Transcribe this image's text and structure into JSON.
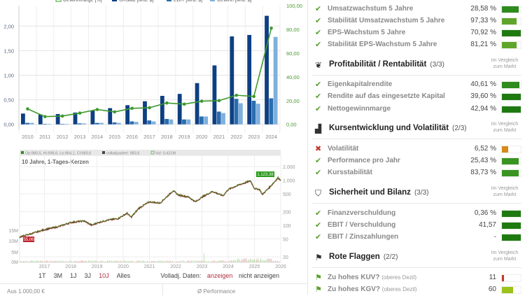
{
  "fundamentals_chart": {
    "legend": [
      "Gewinnmarge [%]",
      "Umsatz [Mrd. $]",
      "EBIT [Mrd. $]",
      "Gewinn [Mrd. $]"
    ],
    "colors": {
      "umsatz": "#0d3f82",
      "ebit": "#2a6db0",
      "gewinn": "#7fb0dc",
      "marge": "#3e9a2e"
    }
  },
  "chart_data": [
    {
      "type": "bar",
      "title": "",
      "categories": [
        "2010",
        "2011",
        "2012",
        "2013",
        "2014",
        "2015",
        "2016",
        "2017",
        "2018",
        "2019",
        "2020",
        "2021",
        "2022",
        "2023",
        "2024"
      ],
      "series": [
        {
          "name": "Umsatz [Mrd. $]",
          "values": [
            0.22,
            0.2,
            0.21,
            0.24,
            0.28,
            0.33,
            0.39,
            0.47,
            0.58,
            0.62,
            0.84,
            1.2,
            1.79,
            1.82,
            2.21
          ]
        },
        {
          "name": "EBIT [Mrd. $]",
          "values": [
            0.03,
            0.01,
            0.01,
            0.02,
            0.03,
            0.04,
            0.06,
            0.08,
            0.11,
            0.1,
            0.16,
            0.26,
            0.52,
            0.48,
            0.53
          ]
        },
        {
          "name": "Gewinn [Mrd. $]",
          "values": [
            0.03,
            0.01,
            0.01,
            0.02,
            0.03,
            0.03,
            0.05,
            0.06,
            0.1,
            0.1,
            0.16,
            0.23,
            0.43,
            0.42,
            1.78
          ]
        },
        {
          "name": "Gewinnmarge [%]",
          "axis": "right",
          "type": "line",
          "values": [
            13,
            6.5,
            7,
            9.5,
            12.5,
            10.5,
            13.5,
            14,
            18,
            17,
            19.5,
            20,
            24.5,
            23.5,
            81
          ]
        }
      ],
      "ylim": [
        -0.1,
        2.4
      ],
      "yticks": [
        "0,00",
        "0,50",
        "1,00",
        "1,50",
        "2,00"
      ],
      "y2lim": [
        -4,
        100
      ],
      "y2ticks": [
        "0,00",
        "20,00",
        "40,00",
        "60,00",
        "80,00",
        "100,00"
      ]
    },
    {
      "type": "line",
      "title": "10 Jahre, 1-Tages-Kerzen",
      "scale": "log",
      "x": [
        2016.05,
        2016.5,
        2017,
        2017.5,
        2018,
        2018.5,
        2018.8,
        2019,
        2019.4,
        2019.8,
        2020,
        2020.15,
        2020.3,
        2020.6,
        2021,
        2021.4,
        2021.9,
        2022.1,
        2022.5,
        2022.75,
        2023,
        2023.4,
        2023.8,
        2024,
        2024.4,
        2024.85,
        2025.0,
        2025.2,
        2025.3,
        2025.6,
        2025.9,
        2026
      ],
      "y": [
        55,
        65,
        80,
        92,
        115,
        125,
        100,
        112,
        130,
        140,
        165,
        185,
        150,
        240,
        330,
        310,
        580,
        470,
        420,
        330,
        420,
        560,
        450,
        620,
        780,
        960,
        650,
        620,
        480,
        720,
        1120,
        1000
      ],
      "price_ticks": [
        "20",
        "50",
        "100",
        "200",
        "500",
        "1.000",
        "2.000"
      ],
      "volume_ticks": [
        "0M",
        "5M",
        "10M",
        "15M"
      ],
      "xticks": [
        "2017",
        "2018",
        "2019",
        "2020",
        "2021",
        "2022",
        "2023",
        "2024",
        "2025",
        "2026"
      ],
      "info": {
        "ohlc": "Op:980,5, Hi:998,6, Lo:964,1, Cl:983,6",
        "adjusted": "volladjustiert: 983,6",
        "volume": "Vol: 0,421M"
      },
      "low_label": "55,06",
      "high_label": "1.123,38",
      "watermark": "TRADERFOX"
    }
  ],
  "chart_controls": {
    "ranges": [
      "1T",
      "3M",
      "1J",
      "3J",
      "10J",
      "Alles"
    ],
    "active": "10J",
    "adjusted_label": "Volladj. Daten:",
    "show": "anzeigen",
    "hide": "nicht anzeigen"
  },
  "bottom": {
    "left": "Aus 1.000,00 €",
    "right": "Ø Performance"
  },
  "compare_label": "Im Vergleich zum Markt",
  "sections": [
    {
      "rows": [
        {
          "status": "check",
          "label": "Umsatzwachstum 5 Jahre",
          "value": "28,58 %",
          "fill": 90,
          "color": "#2e8b1e"
        },
        {
          "status": "check",
          "label": "Stabilität Umsatzwachstum 5 Jahre",
          "value": "97,33 %",
          "fill": 78,
          "color": "#5fa52a"
        },
        {
          "status": "check",
          "label": "EPS-Wachstum 5 Jahre",
          "value": "70,92 %",
          "fill": 100,
          "color": "#1e7a10"
        },
        {
          "status": "check",
          "label": "Stabilität EPS-Wachstum 5 Jahre",
          "value": "81,21 %",
          "fill": 78,
          "color": "#5fa52a"
        }
      ]
    },
    {
      "title": "Profitabilität / Rentabilität",
      "count": "(3/3)",
      "icon": "hands-icon",
      "rows": [
        {
          "status": "check",
          "label": "Eigenkapitalrendite",
          "value": "40,61 %",
          "fill": 92,
          "color": "#2e8b1e"
        },
        {
          "status": "check",
          "label": "Rendite auf das eingesetzte Kapital",
          "value": "39,60 %",
          "fill": 100,
          "color": "#1e7a10"
        },
        {
          "status": "check",
          "label": "Nettogewinnmarge",
          "value": "42,94 %",
          "fill": 100,
          "color": "#1e7a10"
        }
      ]
    },
    {
      "title": "Kursentwicklung und Volatilität",
      "count": "(2/3)",
      "icon": "chart-bars-icon",
      "rows": [
        {
          "status": "cross",
          "label": "Volatilität",
          "value": "6,52 %",
          "fill": 35,
          "color": "#d68a1a"
        },
        {
          "status": "check",
          "label": "Performance pro Jahr",
          "value": "25,43 %",
          "fill": 88,
          "color": "#3a9422"
        },
        {
          "status": "check",
          "label": "Kursstabilität",
          "value": "83,73 %",
          "fill": 88,
          "color": "#3a9422"
        }
      ]
    },
    {
      "title": "Sicherheit und Bilanz",
      "count": "(3/3)",
      "icon": "shield-icon",
      "rows": [
        {
          "status": "check",
          "label": "Finanzverschuldung",
          "value": "0,36 %",
          "fill": 100,
          "color": "#1e7a10"
        },
        {
          "status": "check",
          "label": "EBIT / Verschuldung",
          "value": "41,57",
          "fill": 100,
          "color": "#1e7a10"
        },
        {
          "status": "check",
          "label": "EBIT / Zinszahlungen",
          "value": "-",
          "fill": 100,
          "color": "#1e7a10"
        }
      ]
    },
    {
      "title": "Rote Flaggen",
      "count": "(2/2)",
      "icon": "flag-icon",
      "rows": [
        {
          "status": "flag",
          "label": "Zu hohes KUV?",
          "note": "(oberes Dezil)",
          "value": "11",
          "fill": 12,
          "color": "#c0392b"
        },
        {
          "status": "flag",
          "label": "Zu hohes KGV?",
          "note": "(oberes Dezil)",
          "value": "60",
          "fill": 60,
          "color": "#9bc31a"
        }
      ]
    }
  ]
}
